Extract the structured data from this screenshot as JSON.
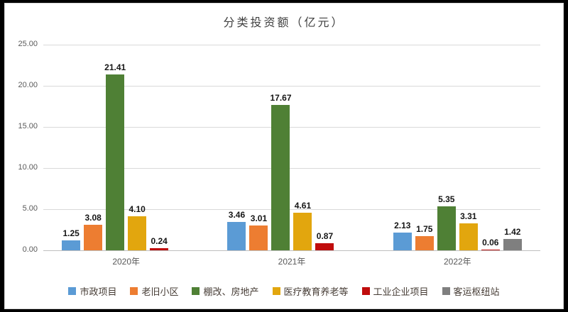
{
  "chart_data": {
    "type": "bar",
    "title": "分类投资额（亿元）",
    "categories": [
      "2020年",
      "2021年",
      "2022年"
    ],
    "series": [
      {
        "name": "市政项目",
        "color": "#5B9BD5",
        "values": [
          1.25,
          3.46,
          2.13
        ]
      },
      {
        "name": "老旧小区",
        "color": "#ED7D31",
        "values": [
          3.08,
          3.01,
          1.75
        ]
      },
      {
        "name": "棚改、房地产",
        "color": "#4F8035",
        "values": [
          21.41,
          17.67,
          5.35
        ]
      },
      {
        "name": "医疗教育养老等",
        "color": "#E2A60E",
        "values": [
          4.1,
          4.61,
          3.31
        ]
      },
      {
        "name": "工业企业项目",
        "color": "#C00C0C",
        "values": [
          0.24,
          0.87,
          0.06
        ]
      },
      {
        "name": "客运枢纽站",
        "color": "#7F7F7F",
        "values": [
          null,
          null,
          1.42
        ]
      }
    ],
    "ylim": [
      0,
      25
    ],
    "ytick_labels": [
      "25.00",
      "20.00",
      "15.00",
      "10.00",
      "5.00",
      "0.00"
    ],
    "grid": true,
    "legend_position": "bottom",
    "value_label_decimals": 2
  }
}
